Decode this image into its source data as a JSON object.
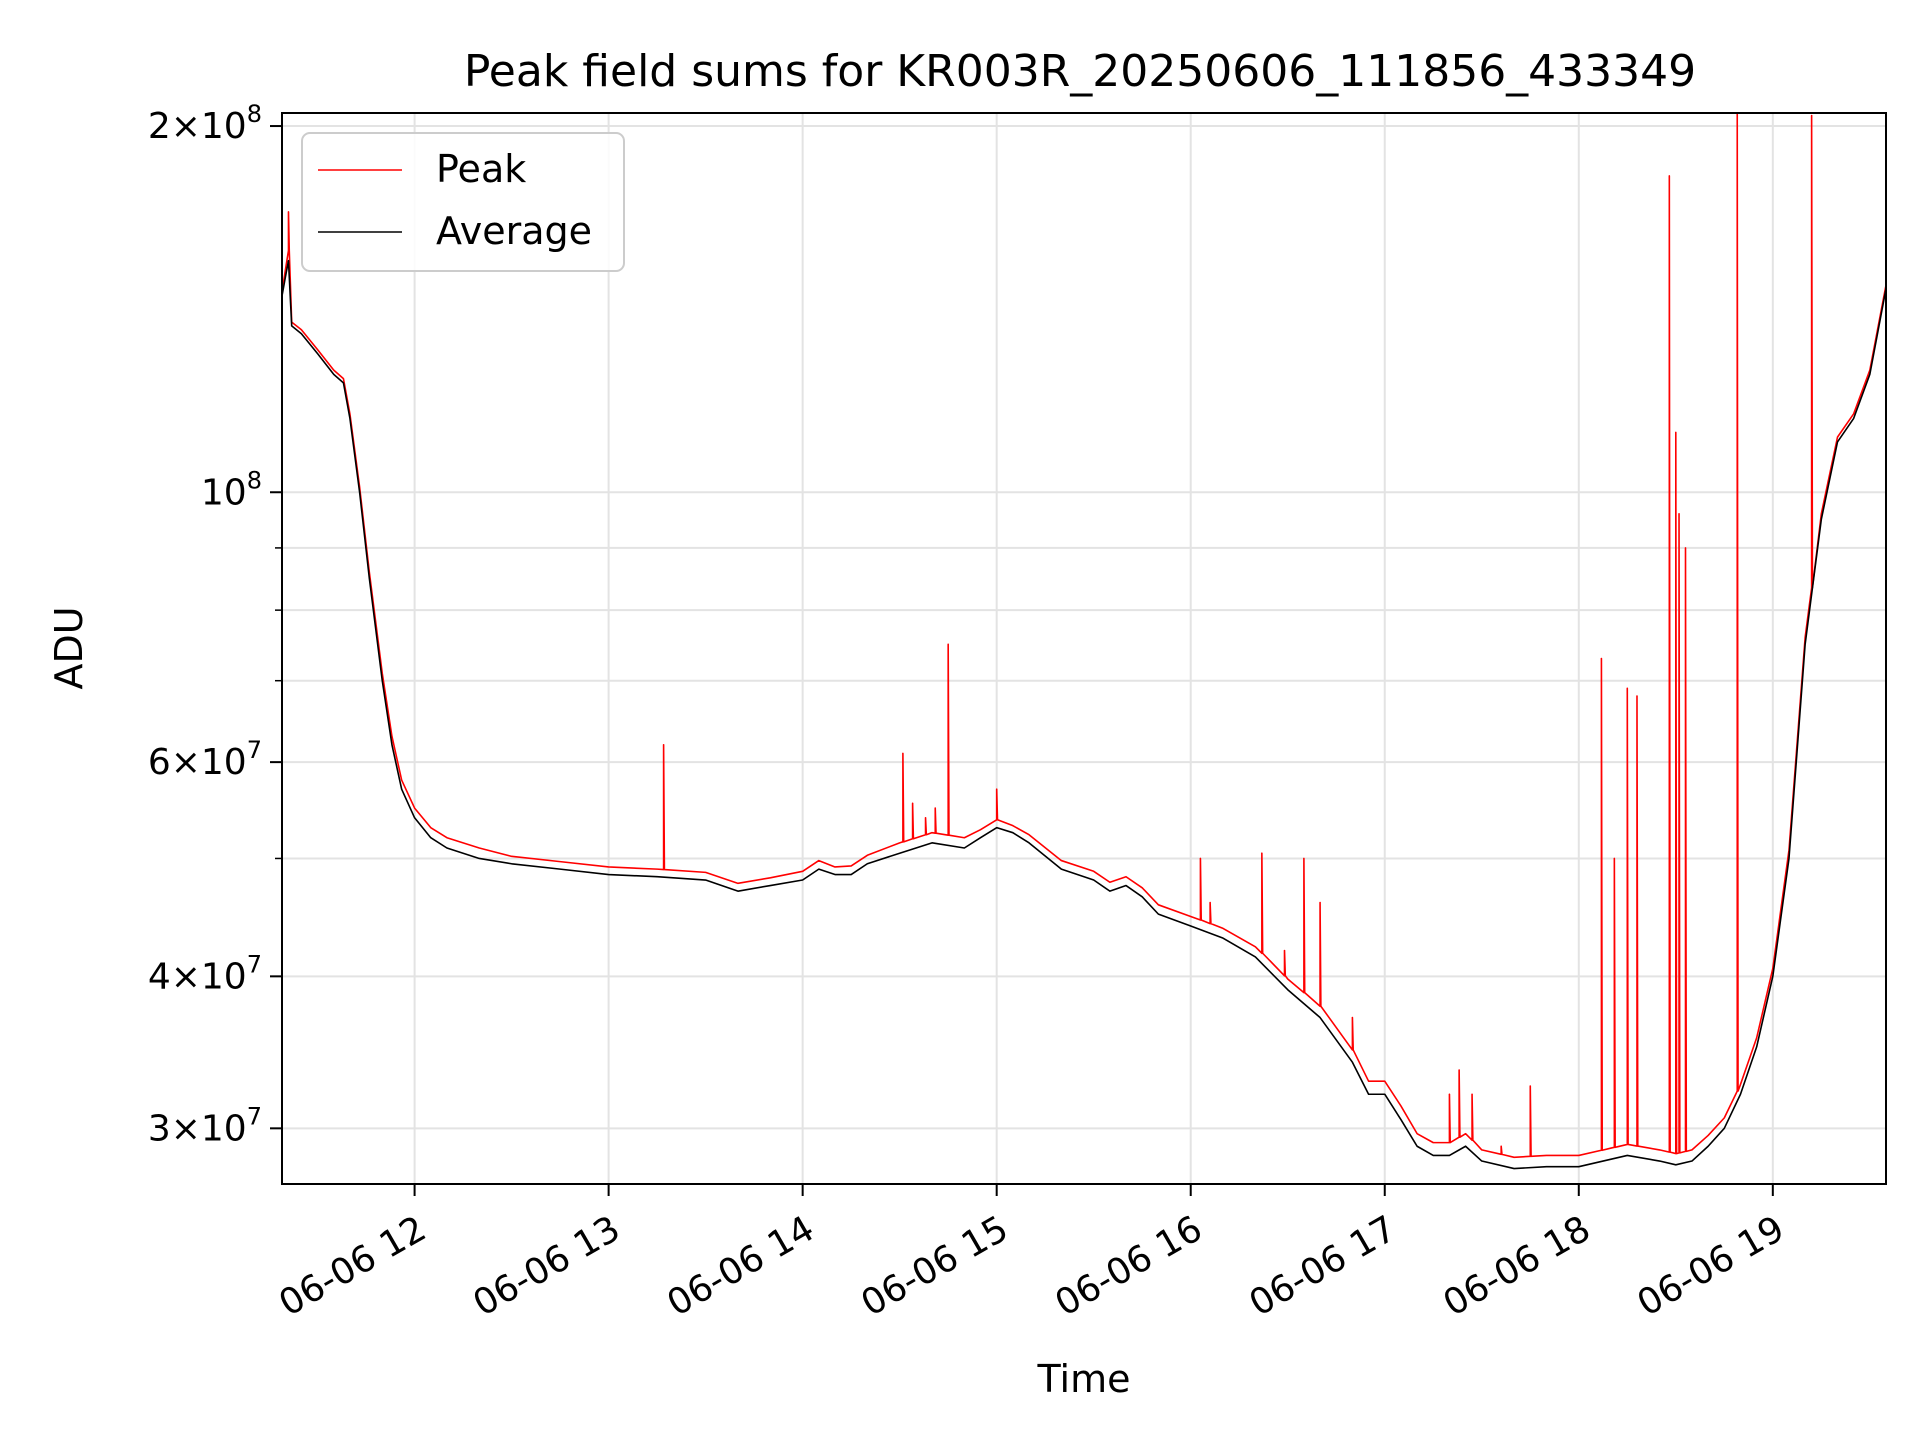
{
  "chart_data": {
    "type": "line",
    "title": "Peak field sums for KR003R_20250606_111856_433349",
    "xlabel": "Time",
    "ylabel": "ADU",
    "yscale": "log",
    "xlim": [
      "2025-06-06T11:19:00",
      "2025-06-06T19:35:00"
    ],
    "ylim": [
      27000000,
      205000000
    ],
    "grid": true,
    "legend_position": "upper-left",
    "x_ticks": [
      {
        "value": "2025-06-06T12:00:00",
        "label": "06-06 12"
      },
      {
        "value": "2025-06-06T13:00:00",
        "label": "06-06 13"
      },
      {
        "value": "2025-06-06T14:00:00",
        "label": "06-06 14"
      },
      {
        "value": "2025-06-06T15:00:00",
        "label": "06-06 15"
      },
      {
        "value": "2025-06-06T16:00:00",
        "label": "06-06 16"
      },
      {
        "value": "2025-06-06T17:00:00",
        "label": "06-06 17"
      },
      {
        "value": "2025-06-06T18:00:00",
        "label": "06-06 18"
      },
      {
        "value": "2025-06-06T19:00:00",
        "label": "06-06 19"
      }
    ],
    "y_major_ticks": [
      {
        "value": 30000000,
        "mantissa": "3",
        "base": "10",
        "exponent": "7"
      },
      {
        "value": 40000000,
        "mantissa": "4",
        "base": "10",
        "exponent": "7"
      },
      {
        "value": 60000000,
        "mantissa": "6",
        "base": "10",
        "exponent": "7"
      },
      {
        "value": 100000000,
        "mantissa": "",
        "base": "10",
        "exponent": "8"
      },
      {
        "value": 200000000,
        "mantissa": "2",
        "base": "10",
        "exponent": "8"
      }
    ],
    "y_minor_ticks": [
      50000000,
      70000000,
      80000000,
      90000000
    ],
    "series": [
      {
        "name": "Average",
        "color": "#000000",
        "x": [
          "2025-06-06T11:19:00",
          "2025-06-06T11:20:00",
          "2025-06-06T11:21:00",
          "2025-06-06T11:22:00",
          "2025-06-06T11:25:00",
          "2025-06-06T11:30:00",
          "2025-06-06T11:35:00",
          "2025-06-06T11:38:00",
          "2025-06-06T11:40:00",
          "2025-06-06T11:43:00",
          "2025-06-06T11:46:00",
          "2025-06-06T11:50:00",
          "2025-06-06T11:53:00",
          "2025-06-06T11:56:00",
          "2025-06-06T12:00:00",
          "2025-06-06T12:05:00",
          "2025-06-06T12:10:00",
          "2025-06-06T12:20:00",
          "2025-06-06T12:30:00",
          "2025-06-06T12:45:00",
          "2025-06-06T13:00:00",
          "2025-06-06T13:15:00",
          "2025-06-06T13:30:00",
          "2025-06-06T13:40:00",
          "2025-06-06T13:50:00",
          "2025-06-06T14:00:00",
          "2025-06-06T14:05:00",
          "2025-06-06T14:10:00",
          "2025-06-06T14:15:00",
          "2025-06-06T14:20:00",
          "2025-06-06T14:30:00",
          "2025-06-06T14:40:00",
          "2025-06-06T14:50:00",
          "2025-06-06T14:55:00",
          "2025-06-06T15:00:00",
          "2025-06-06T15:05:00",
          "2025-06-06T15:10:00",
          "2025-06-06T15:20:00",
          "2025-06-06T15:30:00",
          "2025-06-06T15:35:00",
          "2025-06-06T15:40:00",
          "2025-06-06T15:45:00",
          "2025-06-06T15:50:00",
          "2025-06-06T16:00:00",
          "2025-06-06T16:10:00",
          "2025-06-06T16:20:00",
          "2025-06-06T16:30:00",
          "2025-06-06T16:40:00",
          "2025-06-06T16:50:00",
          "2025-06-06T16:55:00",
          "2025-06-06T17:00:00",
          "2025-06-06T17:05:00",
          "2025-06-06T17:10:00",
          "2025-06-06T17:15:00",
          "2025-06-06T17:20:00",
          "2025-06-06T17:25:00",
          "2025-06-06T17:30:00",
          "2025-06-06T17:40:00",
          "2025-06-06T17:50:00",
          "2025-06-06T18:00:00",
          "2025-06-06T18:10:00",
          "2025-06-06T18:15:00",
          "2025-06-06T18:25:00",
          "2025-06-06T18:30:00",
          "2025-06-06T18:35:00",
          "2025-06-06T18:40:00",
          "2025-06-06T18:45:00",
          "2025-06-06T18:50:00",
          "2025-06-06T18:55:00",
          "2025-06-06T19:00:00",
          "2025-06-06T19:05:00",
          "2025-06-06T19:10:00",
          "2025-06-06T19:15:00",
          "2025-06-06T19:20:00",
          "2025-06-06T19:25:00",
          "2025-06-06T19:30:00",
          "2025-06-06T19:35:00"
        ],
        "y": [
          145000000,
          150000000,
          155000000,
          137000000,
          135000000,
          130000000,
          125000000,
          123000000,
          115000000,
          100000000,
          85000000,
          70000000,
          62000000,
          57000000,
          54000000,
          52000000,
          51000000,
          50000000,
          49500000,
          49000000,
          48500000,
          48300000,
          48000000,
          47000000,
          47500000,
          48000000,
          49000000,
          48500000,
          48500000,
          49500000,
          50500000,
          51500000,
          51000000,
          52000000,
          53000000,
          52500000,
          51500000,
          49000000,
          48000000,
          47000000,
          47500000,
          46500000,
          45000000,
          44000000,
          43000000,
          41500000,
          39000000,
          37000000,
          34000000,
          32000000,
          32000000,
          30500000,
          29000000,
          28500000,
          28500000,
          29000000,
          28200000,
          27800000,
          27900000,
          27900000,
          28300000,
          28500000,
          28200000,
          28000000,
          28200000,
          29000000,
          30000000,
          32000000,
          35000000,
          40000000,
          50000000,
          75000000,
          95000000,
          110000000,
          115000000,
          125000000,
          147000000
        ]
      },
      {
        "name": "Peak",
        "color": "#ff0000",
        "x": [
          "2025-06-06T11:19:00",
          "2025-06-06T11:20:00",
          "2025-06-06T11:21:00",
          "2025-06-06T11:22:00",
          "2025-06-06T11:25:00",
          "2025-06-06T11:30:00",
          "2025-06-06T11:35:00",
          "2025-06-06T11:38:00",
          "2025-06-06T11:40:00",
          "2025-06-06T11:43:00",
          "2025-06-06T11:46:00",
          "2025-06-06T11:50:00",
          "2025-06-06T11:53:00",
          "2025-06-06T11:56:00",
          "2025-06-06T12:00:00",
          "2025-06-06T12:05:00",
          "2025-06-06T12:10:00",
          "2025-06-06T12:20:00",
          "2025-06-06T12:30:00",
          "2025-06-06T12:45:00",
          "2025-06-06T13:00:00",
          "2025-06-06T13:15:00",
          "2025-06-06T13:30:00",
          "2025-06-06T13:40:00",
          "2025-06-06T13:50:00",
          "2025-06-06T14:00:00",
          "2025-06-06T14:05:00",
          "2025-06-06T14:10:00",
          "2025-06-06T14:15:00",
          "2025-06-06T14:20:00",
          "2025-06-06T14:30:00",
          "2025-06-06T14:40:00",
          "2025-06-06T14:50:00",
          "2025-06-06T14:55:00",
          "2025-06-06T15:00:00",
          "2025-06-06T15:05:00",
          "2025-06-06T15:10:00",
          "2025-06-06T15:20:00",
          "2025-06-06T15:30:00",
          "2025-06-06T15:35:00",
          "2025-06-06T15:40:00",
          "2025-06-06T15:45:00",
          "2025-06-06T15:50:00",
          "2025-06-06T16:00:00",
          "2025-06-06T16:10:00",
          "2025-06-06T16:20:00",
          "2025-06-06T16:30:00",
          "2025-06-06T16:40:00",
          "2025-06-06T16:50:00",
          "2025-06-06T16:55:00",
          "2025-06-06T17:00:00",
          "2025-06-06T17:05:00",
          "2025-06-06T17:10:00",
          "2025-06-06T17:15:00",
          "2025-06-06T17:20:00",
          "2025-06-06T17:25:00",
          "2025-06-06T17:30:00",
          "2025-06-06T17:40:00",
          "2025-06-06T17:50:00",
          "2025-06-06T18:00:00",
          "2025-06-06T18:10:00",
          "2025-06-06T18:15:00",
          "2025-06-06T18:25:00",
          "2025-06-06T18:30:00",
          "2025-06-06T18:35:00",
          "2025-06-06T18:40:00",
          "2025-06-06T18:45:00",
          "2025-06-06T18:50:00",
          "2025-06-06T18:55:00",
          "2025-06-06T19:00:00",
          "2025-06-06T19:05:00",
          "2025-06-06T19:10:00",
          "2025-06-06T19:15:00",
          "2025-06-06T19:20:00",
          "2025-06-06T19:25:00",
          "2025-06-06T19:30:00",
          "2025-06-06T19:35:00"
        ],
        "y": [
          146000000,
          152000000,
          158000000,
          138000000,
          136000000,
          131000000,
          126000000,
          124000000,
          116000000,
          101000000,
          86000000,
          71000000,
          63000000,
          58000000,
          55000000,
          53000000,
          52000000,
          51000000,
          50200000,
          49700000,
          49200000,
          49000000,
          48700000,
          47700000,
          48200000,
          48800000,
          49800000,
          49200000,
          49300000,
          50300000,
          51500000,
          52500000,
          52000000,
          52800000,
          53800000,
          53200000,
          52300000,
          49800000,
          48800000,
          47800000,
          48300000,
          47300000,
          45800000,
          44800000,
          43800000,
          42300000,
          39800000,
          37800000,
          34800000,
          32800000,
          32800000,
          31300000,
          29700000,
          29200000,
          29200000,
          29700000,
          28800000,
          28400000,
          28500000,
          28500000,
          28900000,
          29100000,
          28800000,
          28600000,
          28800000,
          29600000,
          30600000,
          32600000,
          35600000,
          40600000,
          50800000,
          76000000,
          96000000,
          111000000,
          116000000,
          126000000,
          148000000
        ],
        "spikes": [
          {
            "x": "2025-06-06T11:21:00",
            "y": 170000000
          },
          {
            "x": "2025-06-06T13:17:00",
            "y": 62000000
          },
          {
            "x": "2025-06-06T14:31:00",
            "y": 61000000
          },
          {
            "x": "2025-06-06T14:34:00",
            "y": 55500000
          },
          {
            "x": "2025-06-06T14:38:00",
            "y": 54000000
          },
          {
            "x": "2025-06-06T14:41:00",
            "y": 55000000
          },
          {
            "x": "2025-06-06T14:45:00",
            "y": 75000000
          },
          {
            "x": "2025-06-06T15:00:00",
            "y": 57000000
          },
          {
            "x": "2025-06-06T16:03:00",
            "y": 50000000
          },
          {
            "x": "2025-06-06T16:06:00",
            "y": 46000000
          },
          {
            "x": "2025-06-06T16:22:00",
            "y": 50500000
          },
          {
            "x": "2025-06-06T16:29:00",
            "y": 42000000
          },
          {
            "x": "2025-06-06T16:35:00",
            "y": 50000000
          },
          {
            "x": "2025-06-06T16:40:00",
            "y": 46000000
          },
          {
            "x": "2025-06-06T16:50:00",
            "y": 37000000
          },
          {
            "x": "2025-06-06T17:20:00",
            "y": 32000000
          },
          {
            "x": "2025-06-06T17:23:00",
            "y": 33500000
          },
          {
            "x": "2025-06-06T17:27:00",
            "y": 32000000
          },
          {
            "x": "2025-06-06T17:36:00",
            "y": 29000000
          },
          {
            "x": "2025-06-06T17:45:00",
            "y": 32500000
          },
          {
            "x": "2025-06-06T18:07:00",
            "y": 73000000
          },
          {
            "x": "2025-06-06T18:11:00",
            "y": 50000000
          },
          {
            "x": "2025-06-06T18:15:00",
            "y": 69000000
          },
          {
            "x": "2025-06-06T18:18:00",
            "y": 68000000
          },
          {
            "x": "2025-06-06T18:28:00",
            "y": 182000000
          },
          {
            "x": "2025-06-06T18:30:00",
            "y": 112000000
          },
          {
            "x": "2025-06-06T18:31:00",
            "y": 96000000
          },
          {
            "x": "2025-06-06T18:33:00",
            "y": 90000000
          },
          {
            "x": "2025-06-06T18:49:00",
            "y": 205000000
          },
          {
            "x": "2025-06-06T19:12:00",
            "y": 204000000
          }
        ]
      }
    ]
  }
}
